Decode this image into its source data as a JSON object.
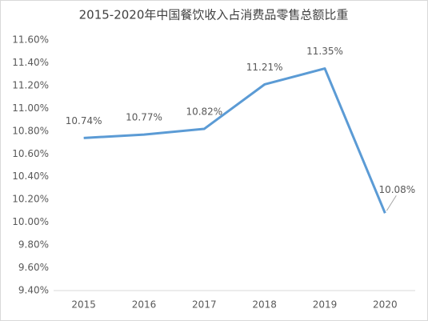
{
  "chart_data": {
    "type": "line",
    "title": "2015-2020年中国餐饮收入占消费品零售总额比重",
    "categories": [
      "2015",
      "2016",
      "2017",
      "2018",
      "2019",
      "2020"
    ],
    "series": [
      {
        "name": "比重",
        "color": "#5b9bd5",
        "values": [
          10.74,
          10.77,
          10.82,
          11.21,
          11.35,
          10.08
        ],
        "value_labels": [
          "10.74%",
          "10.77%",
          "10.82%",
          "11.21%",
          "11.35%",
          "10.08%"
        ]
      }
    ],
    "ylim": [
      9.4,
      11.6
    ],
    "yticks": [
      {
        "value": 9.4,
        "label": "9.40%"
      },
      {
        "value": 9.6,
        "label": "9.60%"
      },
      {
        "value": 9.8,
        "label": "9.80%"
      },
      {
        "value": 10.0,
        "label": "10.00%"
      },
      {
        "value": 10.2,
        "label": "10.20%"
      },
      {
        "value": 10.4,
        "label": "10.40%"
      },
      {
        "value": 10.6,
        "label": "10.60%"
      },
      {
        "value": 10.8,
        "label": "10.80%"
      },
      {
        "value": 11.0,
        "label": "11.00%"
      },
      {
        "value": 11.2,
        "label": "11.20%"
      },
      {
        "value": 11.4,
        "label": "11.40%"
      },
      {
        "value": 11.6,
        "label": "11.60%"
      }
    ],
    "grid": false
  }
}
